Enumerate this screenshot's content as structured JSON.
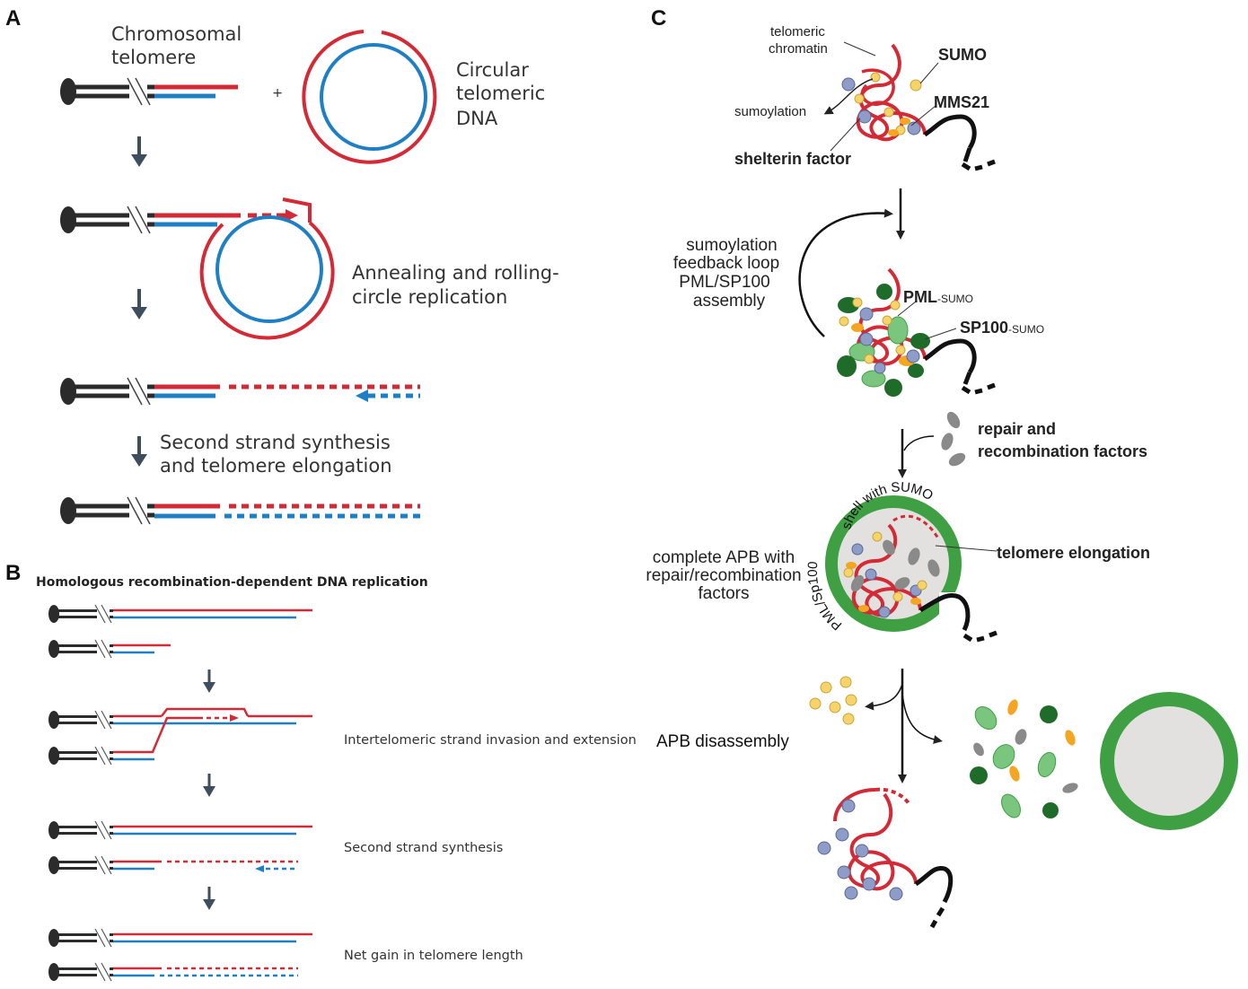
{
  "panels": {
    "a": "A",
    "b": "B",
    "c": "C"
  },
  "panel_a": {
    "chromosomal_telomere": [
      "Chromosomal",
      "telomere"
    ],
    "plus": "+",
    "circular_dna": [
      "Circular",
      "telomeric",
      "DNA"
    ],
    "annealing": [
      "Annealing and rolling-",
      "circle replication"
    ],
    "second_strand": [
      "Second strand synthesis",
      "and telomere elongation"
    ]
  },
  "panel_b": {
    "title": "Homologous recombination-dependent DNA replication",
    "invasion": "Intertelomeric strand invasion and extension",
    "second_strand": "Second strand synthesis",
    "net_gain": "Net gain in telomere length"
  },
  "panel_c": {
    "telomeric_chromatin": [
      "telomeric",
      "chromatin"
    ],
    "sumo": "SUMO",
    "mms21": "MMS21",
    "sumoylation": "sumoylation",
    "shelterin": "shelterin factor",
    "feedback": [
      "sumoylation",
      "feedback loop",
      "PML/SP100",
      "assembly"
    ],
    "pml": "PML",
    "pml_sup": "-SUMO",
    "sp100": "SP100",
    "sp100_sup": "-SUMO",
    "repair": [
      "repair and",
      "recombination factors"
    ],
    "shell_top": "shell with SUMO",
    "shell_left": "PML/Sp100",
    "elongation": "telomere elongation",
    "complete_apb": [
      "complete APB with",
      "repair/recombination",
      "factors"
    ],
    "disassembly": "APB disassembly"
  },
  "colors": {
    "red": "#d42a35",
    "blue": "#1f7fc4",
    "arrow": "#3d4f5f",
    "green": "#3ea043",
    "light_green": "#7bc67e",
    "dark_green": "#1f6b2a",
    "sumo_yellow": "#f6d36b",
    "orange": "#f4a623",
    "lavender": "#8e9cc8",
    "grey": "#8a8a8a",
    "nucleus_fill": "#e3e0e0"
  }
}
